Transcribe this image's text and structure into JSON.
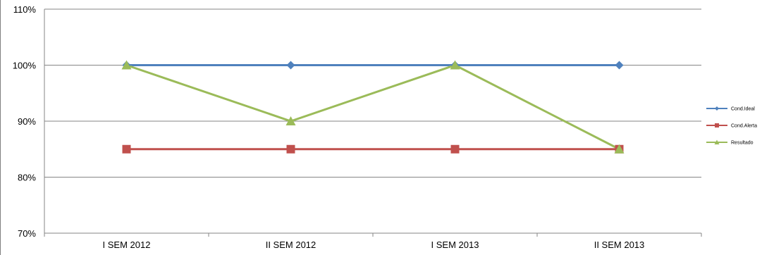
{
  "chart_data": {
    "type": "line",
    "categories": [
      "I SEM 2012",
      "II SEM 2012",
      "I SEM 2013",
      "II SEM 2013"
    ],
    "ylim": [
      0.7,
      1.1
    ],
    "yticks": [
      0.7,
      0.8,
      0.9,
      1.0,
      1.1
    ],
    "ytick_labels": [
      "70%",
      "80%",
      "90%",
      "100%",
      "110%"
    ],
    "grid": true,
    "legend_position": "right",
    "series": [
      {
        "name": "Cond.Ideal",
        "values": [
          1.0,
          1.0,
          1.0,
          1.0
        ],
        "color": "#4F81BD",
        "marker": "diamond"
      },
      {
        "name": "Cond.Alerta",
        "values": [
          0.85,
          0.85,
          0.85,
          0.85
        ],
        "color": "#C0504D",
        "marker": "square"
      },
      {
        "name": "Resultado",
        "values": [
          1.0,
          0.9,
          1.0,
          0.85
        ],
        "color": "#9BBB59",
        "marker": "triangle"
      }
    ]
  }
}
